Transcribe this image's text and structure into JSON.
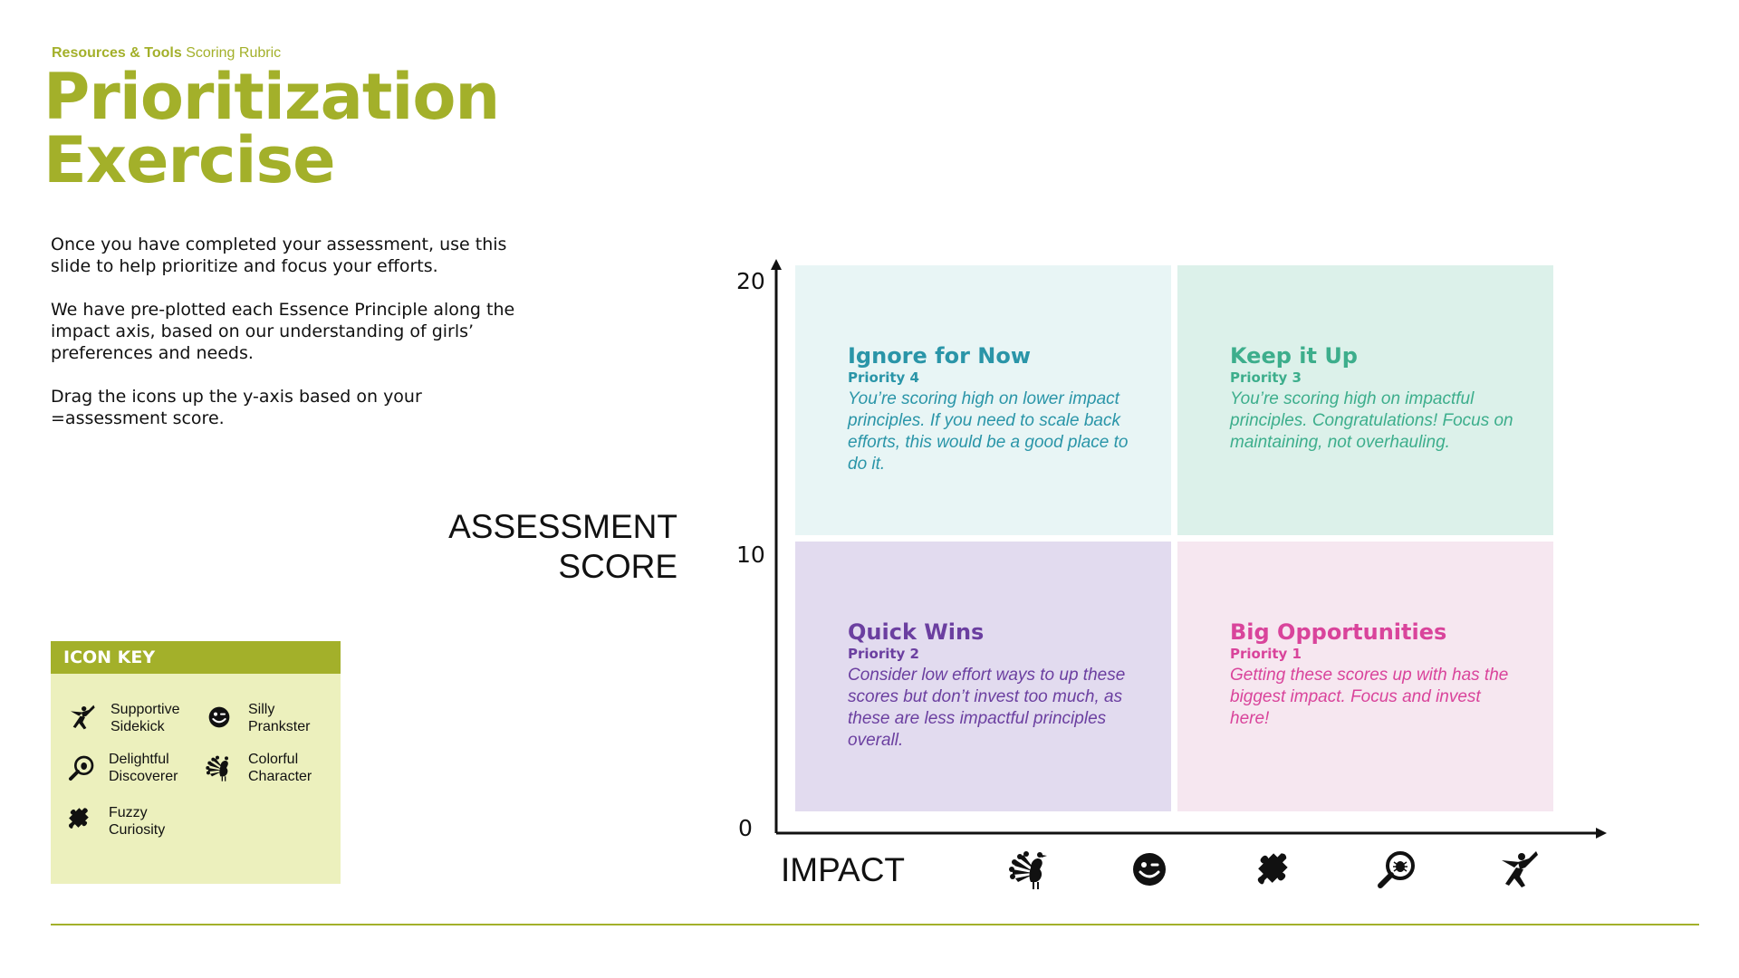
{
  "breadcrumb": {
    "section": "Resources & Tools",
    "page": "Scoring Rubric"
  },
  "title": {
    "line1": "Prioritization",
    "line2": "Exercise"
  },
  "intro": {
    "p1": "Once you have completed your assessment, use this slide to help prioritize and focus your efforts.",
    "p2": "We have pre-plotted each Essence Principle along the impact axis, based on our understanding of girls’ preferences and needs.",
    "p3": "Drag the icons up the y-axis based on your =assessment score."
  },
  "y_axis": {
    "label_line1": "ASSESSMENT",
    "label_line2": "SCORE",
    "ticks": [
      "20",
      "10",
      "0"
    ]
  },
  "x_axis": {
    "label": "IMPACT"
  },
  "quadrants": {
    "top_left": {
      "title": "Ignore for Now",
      "priority": "Priority 4",
      "description": "You’re scoring high on lower impact principles. If you need to scale back efforts, this would be a good place to do it.",
      "bg": "#e8f5f5",
      "color": "#2a95a8"
    },
    "top_right": {
      "title": "Keep it Up",
      "priority": "Priority 3",
      "description": "You’re scoring high on impactful principles. Congratulations! Focus on maintaining, not overhauling.",
      "bg": "#dcf1ea",
      "color": "#3dae8c"
    },
    "bottom_left": {
      "title": "Quick Wins",
      "priority": "Priority 2",
      "description": "Consider low effort ways to up these scores but don’t invest too much, as these are less impactful principles overall.",
      "bg": "#e2dbef",
      "color": "#6b3fa0"
    },
    "bottom_right": {
      "title": "Big Opportunities",
      "priority": "Priority 1",
      "description": "Getting these scores up with has the biggest impact. Focus and invest here!",
      "bg": "#f6e7f0",
      "color": "#d9449b"
    }
  },
  "icon_key": {
    "heading": "ICON KEY",
    "items": [
      {
        "line1": "Supportive",
        "line2": "Sidekick",
        "icon": "superhero-icon"
      },
      {
        "line1": "Silly",
        "line2": "Prankster",
        "icon": "smiley-icon"
      },
      {
        "line1": "Delightful",
        "line2": "Discoverer",
        "icon": "magnifier-icon"
      },
      {
        "line1": "Colorful",
        "line2": "Character",
        "icon": "peacock-icon"
      },
      {
        "line1": "Fuzzy",
        "line2": "Curiosity",
        "icon": "puzzle-icon"
      }
    ]
  },
  "x_axis_icons": [
    "peacock-icon",
    "smiley-icon",
    "puzzle-icon",
    "magnifier-icon",
    "superhero-icon"
  ],
  "colors": {
    "accent": "#a3b02a",
    "key_bg": "#ecf0bd"
  }
}
